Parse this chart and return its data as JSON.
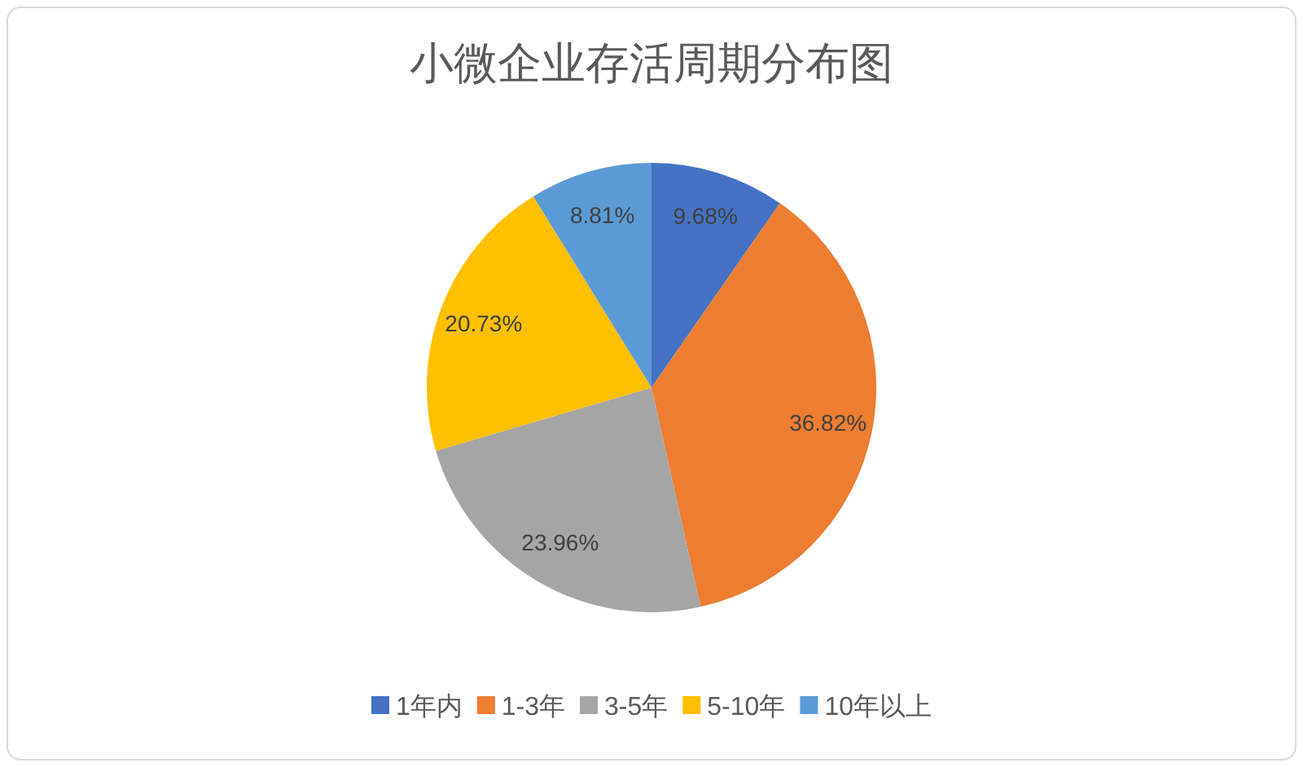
{
  "chart_data": {
    "type": "pie",
    "title": "小微企业存活周期分布图",
    "categories": [
      "1年内",
      "1-3年",
      "3-5年",
      "5-10年",
      "10年以上"
    ],
    "values": [
      9.68,
      36.82,
      23.96,
      20.73,
      8.81
    ],
    "colors": [
      "#4472c4",
      "#ed7d31",
      "#a5a5a5",
      "#ffc000",
      "#5b9bd5"
    ],
    "value_labels": [
      "9.68%",
      "36.82%",
      "23.96%",
      "20.73%",
      "8.81%"
    ],
    "legend": "bottom"
  }
}
